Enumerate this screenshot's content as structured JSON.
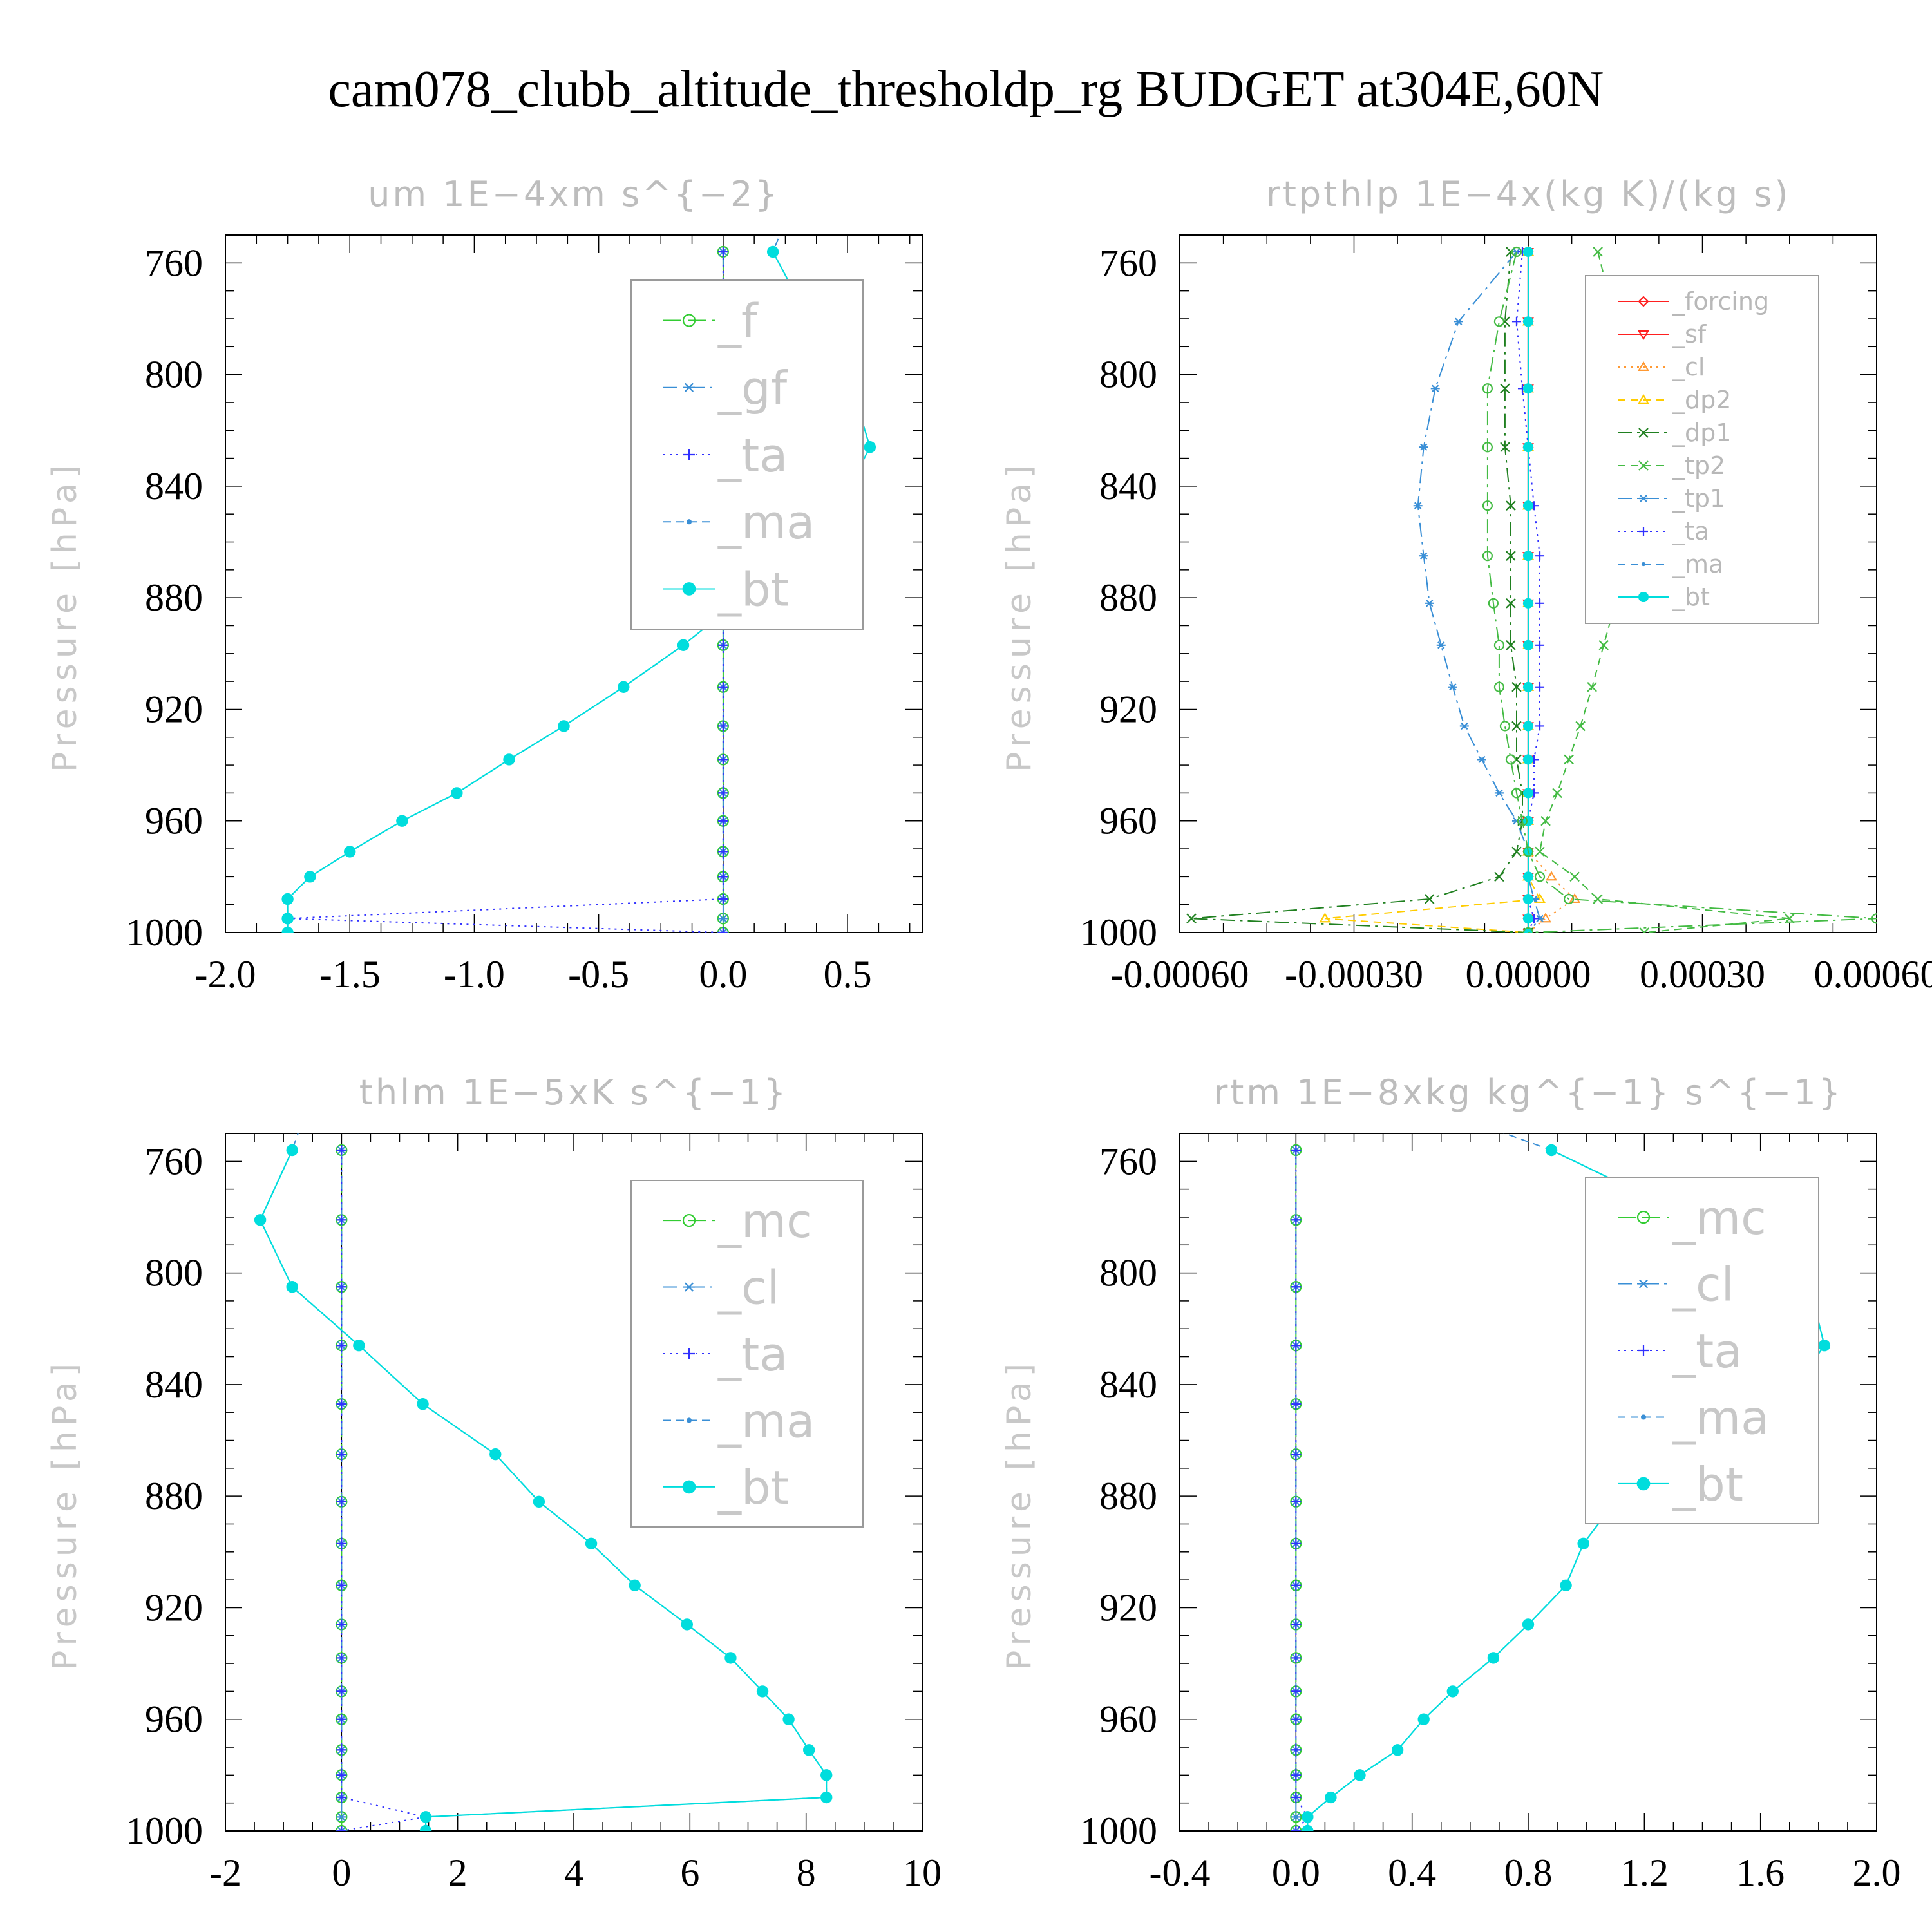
{
  "suptitle": "cam078_clubb_altitude_thresholdp_rg  BUDGET at304E,60N",
  "colors": {
    "green": "#33cc33",
    "steel": "#3a8fd6",
    "blue": "#3030ff",
    "cyan": "#00dddd",
    "teal": "#3a9090",
    "red": "#ff2020",
    "orange": "#ff9933",
    "yellow": "#ffcc00",
    "darkgreen": "#208020",
    "lime": "#44bb44"
  },
  "chart_data": [
    {
      "type": "line",
      "title": "um   1E−4xm s^{−2}",
      "ylabel": "Pressure [hPa]",
      "xlim": [
        -2.0,
        0.8
      ],
      "ylim": [
        1000,
        750
      ],
      "xticks": [
        -2.0,
        -1.5,
        -1.0,
        -0.5,
        0.0,
        0.5
      ],
      "xtick_labels": [
        "-2.0",
        "-1.5",
        "-1.0",
        "-0.5",
        "0.0",
        "0.5"
      ],
      "yticks": [
        760,
        800,
        840,
        880,
        920,
        960,
        1000
      ],
      "ytick_labels": [
        "760",
        "800",
        "840",
        "880",
        "920",
        "960",
        "1000"
      ],
      "legend_loc": "top-right",
      "legend_size": "large",
      "pressure": [
        756,
        781,
        805,
        826,
        847,
        865,
        882,
        897,
        912,
        926,
        938,
        950,
        960,
        971,
        980,
        988,
        995,
        1000
      ],
      "series": [
        {
          "name": "_f",
          "color": "green",
          "marker": "circle",
          "dash": "long",
          "values": [
            0,
            0,
            0,
            0,
            0,
            0,
            0,
            0,
            0,
            0,
            0,
            0,
            0,
            0,
            0,
            0,
            0,
            0
          ]
        },
        {
          "name": "_gf",
          "color": "steel",
          "marker": "star",
          "dash": "dashdot",
          "values": [
            0,
            0,
            0,
            0,
            0,
            0,
            0,
            0,
            0,
            0,
            0,
            0,
            0,
            0,
            0,
            0,
            0,
            0
          ]
        },
        {
          "name": "_ta",
          "color": "blue",
          "marker": "plus",
          "dash": "dot",
          "values": [
            0,
            0,
            0,
            0,
            0,
            0,
            0,
            0,
            0,
            0,
            0,
            0,
            0,
            0,
            0,
            0,
            -1.75,
            0
          ]
        },
        {
          "name": "_ma",
          "color": "steel",
          "marker": "dot",
          "dash": "dash",
          "values": [
            0.2,
            0.35,
            0.52,
            0.59,
            0.47,
            0.28,
            0.05,
            -0.16,
            -0.4,
            -0.64,
            -0.86,
            -1.07,
            -1.29,
            -1.5,
            -1.66,
            -1.75,
            -1.75,
            -1.75
          ]
        },
        {
          "name": "_bt",
          "color": "cyan",
          "marker": "disk",
          "dash": "none",
          "values": [
            0.2,
            0.35,
            0.52,
            0.59,
            0.47,
            0.28,
            0.05,
            -0.16,
            -0.4,
            -0.64,
            -0.86,
            -1.07,
            -1.29,
            -1.5,
            -1.66,
            -1.75,
            -1.75,
            -1.75
          ]
        }
      ]
    },
    {
      "type": "line",
      "title": "rtpthlp   1E−4x(kg K)/(kg s)",
      "ylabel": "Pressure [hPa]",
      "xlim": [
        -0.0006,
        0.0006
      ],
      "ylim": [
        1000,
        750
      ],
      "xticks": [
        -0.0006,
        -0.0003,
        0.0,
        0.0003,
        0.0006
      ],
      "xtick_labels": [
        "-0.00060",
        "-0.00030",
        "0.00000",
        "0.00030",
        "0.00060"
      ],
      "yticks": [
        760,
        800,
        840,
        880,
        920,
        960,
        1000
      ],
      "ytick_labels": [
        "760",
        "800",
        "840",
        "880",
        "920",
        "960",
        "1000"
      ],
      "legend_loc": "top-right",
      "legend_size": "small",
      "pressure": [
        756,
        781,
        805,
        826,
        847,
        865,
        882,
        897,
        912,
        926,
        938,
        950,
        960,
        971,
        980,
        988,
        995,
        1000
      ],
      "series": [
        {
          "name": "_forcing",
          "color": "red",
          "marker": "diamond",
          "dash": "none",
          "values": [
            0,
            0,
            0,
            0,
            0,
            0,
            0,
            0,
            0,
            0,
            0,
            0,
            0,
            0,
            0,
            0,
            0,
            0
          ]
        },
        {
          "name": "_sf",
          "color": "red",
          "marker": "triangle-down",
          "dash": "none",
          "values": [
            0,
            0,
            0,
            0,
            0,
            0,
            0,
            0,
            0,
            0,
            0,
            0,
            0,
            0,
            0,
            0,
            0,
            0
          ]
        },
        {
          "name": "_cl",
          "color": "orange",
          "marker": "triangle-up",
          "dash": "dot",
          "values": [
            0,
            0,
            0,
            0,
            0,
            0,
            0,
            0,
            0,
            0,
            0,
            0,
            0,
            0,
            4e-05,
            8e-05,
            3e-05,
            0
          ]
        },
        {
          "name": "_dp2",
          "color": "yellow",
          "marker": "triangle-up",
          "dash": "dash",
          "values": [
            0,
            0,
            0,
            0,
            0,
            0,
            0,
            0,
            0,
            0,
            0,
            0,
            0,
            0,
            0,
            2e-05,
            -0.00035,
            0
          ]
        },
        {
          "name": "_dp1",
          "color": "darkgreen",
          "marker": "x",
          "dash": "dashdot",
          "values": [
            -3e-05,
            -4e-05,
            -4e-05,
            -4e-05,
            -3e-05,
            -3e-05,
            -3e-05,
            -3e-05,
            -2e-05,
            -2e-05,
            -2e-05,
            -1e-05,
            -1e-05,
            -2e-05,
            -5e-05,
            -0.00017,
            -0.00058,
            0
          ]
        },
        {
          "name": "_tp2",
          "color": "lime",
          "marker": "x",
          "dash": "dash",
          "values": [
            0.00012,
            0.00015,
            0.00017,
            0.00018,
            0.00017,
            0.00016,
            0.00015,
            0.00013,
            0.00011,
            9e-05,
            7e-05,
            5e-05,
            3e-05,
            2e-05,
            8e-05,
            0.00012,
            0.00045,
            0.0002
          ]
        },
        {
          "name": "_tp1",
          "color": "steel",
          "marker": "star",
          "dash": "dashdot",
          "values": [
            -2e-05,
            -0.00012,
            -0.00016,
            -0.00018,
            -0.00019,
            -0.00018,
            -0.00017,
            -0.00015,
            -0.00013,
            -0.00011,
            -8e-05,
            -5e-05,
            -2e-05,
            0,
            0,
            1e-05,
            2e-05,
            0
          ]
        },
        {
          "name": "_ta",
          "color": "blue",
          "marker": "plus",
          "dash": "dot",
          "values": [
            -1e-05,
            -2e-05,
            -1e-05,
            0,
            1e-05,
            2e-05,
            2e-05,
            2e-05,
            2e-05,
            2e-05,
            1e-05,
            1e-05,
            0,
            0,
            0,
            0,
            1e-05,
            0
          ]
        },
        {
          "name": "_ma",
          "color": "steel",
          "marker": "dot",
          "dash": "dash",
          "values": [
            0,
            0,
            0,
            0,
            0,
            0,
            0,
            0,
            0,
            0,
            0,
            0,
            0,
            0,
            0,
            0,
            0,
            0
          ]
        },
        {
          "name": "_bt",
          "color": "cyan",
          "marker": "disk",
          "dash": "none",
          "values": [
            0,
            0,
            0,
            0,
            0,
            0,
            0,
            0,
            0,
            0,
            0,
            0,
            0,
            0,
            0,
            0,
            0,
            0
          ]
        },
        {
          "name": "",
          "color": "lime",
          "marker": "circle",
          "dash": "dashdot",
          "values": [
            -2e-05,
            -5e-05,
            -7e-05,
            -7e-05,
            -7e-05,
            -7e-05,
            -6e-05,
            -5e-05,
            -5e-05,
            -4e-05,
            -3e-05,
            -2e-05,
            -1e-05,
            0,
            2e-05,
            7e-05,
            0.0006,
            0
          ]
        }
      ]
    },
    {
      "type": "line",
      "title": "thlm   1E−5xK s^{−1}",
      "ylabel": "Pressure [hPa]",
      "xlim": [
        -2,
        10
      ],
      "ylim": [
        1000,
        750
      ],
      "xticks": [
        -2,
        0,
        2,
        4,
        6,
        8,
        10
      ],
      "xtick_labels": [
        "-2",
        "0",
        "2",
        "4",
        "6",
        "8",
        "10"
      ],
      "yticks": [
        760,
        800,
        840,
        880,
        920,
        960,
        1000
      ],
      "ytick_labels": [
        "760",
        "800",
        "840",
        "880",
        "920",
        "960",
        "1000"
      ],
      "legend_loc": "top-right",
      "legend_size": "large",
      "pressure": [
        756,
        781,
        805,
        826,
        847,
        865,
        882,
        897,
        912,
        926,
        938,
        950,
        960,
        971,
        980,
        988,
        995,
        1000
      ],
      "series": [
        {
          "name": "_mc",
          "color": "green",
          "marker": "circle",
          "dash": "long",
          "values": [
            0,
            0,
            0,
            0,
            0,
            0,
            0,
            0,
            0,
            0,
            0,
            0,
            0,
            0,
            0,
            0,
            0,
            0
          ]
        },
        {
          "name": "_cl",
          "color": "steel",
          "marker": "star",
          "dash": "dashdot",
          "values": [
            0,
            0,
            0,
            0,
            0,
            0,
            0,
            0,
            0,
            0,
            0,
            0,
            0,
            0,
            0,
            0,
            0,
            0
          ]
        },
        {
          "name": "_ta",
          "color": "blue",
          "marker": "plus",
          "dash": "dot",
          "values": [
            0,
            0,
            0,
            0,
            0,
            0,
            0,
            0,
            0,
            0,
            0,
            0,
            0,
            0,
            0,
            0,
            1.45,
            0
          ]
        },
        {
          "name": "_ma",
          "color": "steel",
          "marker": "dot",
          "dash": "dash",
          "values": [
            -0.85,
            -1.4,
            -0.85,
            0.3,
            1.4,
            2.65,
            3.4,
            4.3,
            5.05,
            5.95,
            6.7,
            7.25,
            7.7,
            8.05,
            8.35,
            8.35,
            1.45,
            1.45
          ]
        },
        {
          "name": "_bt",
          "color": "cyan",
          "marker": "disk",
          "dash": "none",
          "values": [
            -0.85,
            -1.4,
            -0.85,
            0.3,
            1.4,
            2.65,
            3.4,
            4.3,
            5.05,
            5.95,
            6.7,
            7.25,
            7.7,
            8.05,
            8.35,
            8.35,
            1.45,
            1.45
          ]
        }
      ]
    },
    {
      "type": "line",
      "title": "rtm   1E−8xkg kg^{−1} s^{−1}",
      "ylabel": "Pressure [hPa]",
      "xlim": [
        -0.4,
        2.0
      ],
      "ylim": [
        1000,
        750
      ],
      "xticks": [
        -0.4,
        0.0,
        0.4,
        0.8,
        1.2,
        1.6,
        2.0
      ],
      "xtick_labels": [
        "-0.4",
        "0.0",
        "0.4",
        "0.8",
        "1.2",
        "1.6",
        "2.0"
      ],
      "yticks": [
        760,
        800,
        840,
        880,
        920,
        960,
        1000
      ],
      "ytick_labels": [
        "760",
        "800",
        "840",
        "880",
        "920",
        "960",
        "1000"
      ],
      "legend_loc": "top-right",
      "legend_size": "large",
      "pressure": [
        756,
        781,
        805,
        826,
        847,
        865,
        882,
        897,
        912,
        926,
        938,
        950,
        960,
        971,
        980,
        988,
        995,
        1000
      ],
      "series": [
        {
          "name": "_mc",
          "color": "green",
          "marker": "circle",
          "dash": "long",
          "values": [
            0,
            0,
            0,
            0,
            0,
            0,
            0,
            0,
            0,
            0,
            0,
            0,
            0,
            0,
            0,
            0,
            0,
            0
          ]
        },
        {
          "name": "_cl",
          "color": "steel",
          "marker": "star",
          "dash": "dashdot",
          "values": [
            0,
            0,
            0,
            0,
            0,
            0,
            0,
            0,
            0,
            0,
            0,
            0,
            0,
            0,
            0,
            0,
            0,
            0
          ]
        },
        {
          "name": "_ta",
          "color": "blue",
          "marker": "plus",
          "dash": "dot",
          "values": [
            0,
            0,
            0,
            0,
            0,
            0,
            0,
            0,
            0,
            0,
            0,
            0,
            0,
            0,
            0,
            0,
            0.04,
            0
          ]
        },
        {
          "name": "_ma",
          "color": "steel",
          "marker": "dot",
          "dash": "dash",
          "values": [
            0.88,
            1.38,
            1.77,
            1.82,
            1.68,
            1.38,
            1.1,
            0.99,
            0.93,
            0.8,
            0.68,
            0.54,
            0.44,
            0.35,
            0.22,
            0.12,
            0.04,
            0.04
          ]
        },
        {
          "name": "_bt",
          "color": "cyan",
          "marker": "disk",
          "dash": "none",
          "values": [
            0.88,
            1.38,
            1.77,
            1.82,
            1.68,
            1.38,
            1.1,
            0.99,
            0.93,
            0.8,
            0.68,
            0.54,
            0.44,
            0.35,
            0.22,
            0.12,
            0.04,
            0.04
          ]
        }
      ]
    }
  ]
}
